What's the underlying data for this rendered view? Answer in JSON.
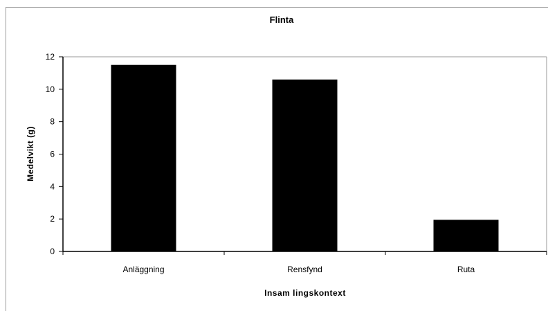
{
  "chart_data": {
    "type": "bar",
    "title": "Flinta",
    "xlabel": "Insam lingskontext",
    "ylabel": "Medelvikt (g)",
    "categories": [
      "Anläggning",
      "Rensfynd",
      "Ruta"
    ],
    "values": [
      11.5,
      10.6,
      1.95
    ],
    "ylim": [
      0,
      12
    ],
    "yticks": [
      "0",
      "2",
      "4",
      "6",
      "8",
      "10",
      "12"
    ],
    "grid": false,
    "legend": "none",
    "bar_color": "#000000"
  }
}
